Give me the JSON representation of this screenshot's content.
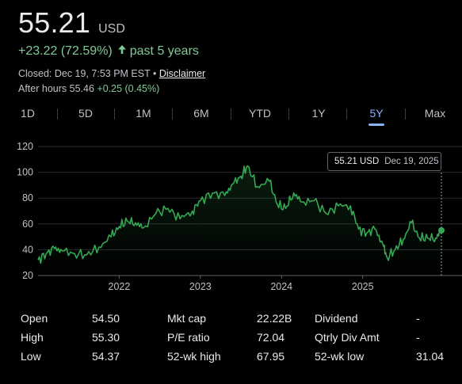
{
  "price": "55.21",
  "currency": "USD",
  "change": {
    "amount": "+23.22 (72.59%)",
    "period": "past 5 years",
    "color": "#81c995"
  },
  "closed": {
    "text": "Closed: Dec 19, 7:53 PM EST •",
    "disclaimer": "Disclaimer"
  },
  "after_hours": {
    "label": "After hours 55.46",
    "change": "+0.25 (0.45%)"
  },
  "ranges": [
    "1D",
    "5D",
    "1M",
    "6M",
    "YTD",
    "1Y",
    "5Y",
    "Max"
  ],
  "active_range": "5Y",
  "tooltip": {
    "value": "55.21 USD",
    "date": "Dec 19, 2025"
  },
  "stats": [
    {
      "label": "Open",
      "value": "54.50"
    },
    {
      "label": "High",
      "value": "55.30"
    },
    {
      "label": "Low",
      "value": "54.37"
    },
    {
      "label": "Mkt cap",
      "value": "22.22B"
    },
    {
      "label": "P/E ratio",
      "value": "72.04"
    },
    {
      "label": "52-wk high",
      "value": "67.95"
    },
    {
      "label": "Dividend",
      "value": "-"
    },
    {
      "label": "Qtrly Div Amt",
      "value": "-"
    },
    {
      "label": "52-wk low",
      "value": "31.04"
    }
  ],
  "chart_data": {
    "type": "line",
    "ylim": [
      20,
      120
    ],
    "y_ticks": [
      "120",
      "100",
      "80",
      "60",
      "40",
      "20"
    ],
    "x_ticks": [
      "2022",
      "2023",
      "2024",
      "2025"
    ],
    "line_color": "#34a853",
    "x": [
      2021.0,
      2021.1,
      2021.2,
      2021.3,
      2021.45,
      2021.6,
      2021.75,
      2021.9,
      2022.0,
      2022.1,
      2022.2,
      2022.3,
      2022.45,
      2022.6,
      2022.75,
      2022.9,
      2023.0,
      2023.15,
      2023.3,
      2023.4,
      2023.5,
      2023.58,
      2023.7,
      2023.85,
      2023.95,
      2024.05,
      2024.15,
      2024.25,
      2024.4,
      2024.55,
      2024.7,
      2024.85,
      2024.95,
      2025.05,
      2025.15,
      2025.25,
      2025.3,
      2025.4,
      2025.5,
      2025.6,
      2025.7,
      2025.8,
      2025.9,
      2025.97
    ],
    "values": [
      32,
      37,
      41,
      39,
      37,
      36,
      42,
      50,
      58,
      62,
      61,
      57,
      68,
      72,
      64,
      70,
      78,
      84,
      82,
      91,
      97,
      105,
      89,
      93,
      75,
      72,
      84,
      77,
      78,
      68,
      74,
      74,
      56,
      53,
      56,
      44,
      34,
      40,
      48,
      61,
      49,
      49,
      49,
      55
    ]
  }
}
